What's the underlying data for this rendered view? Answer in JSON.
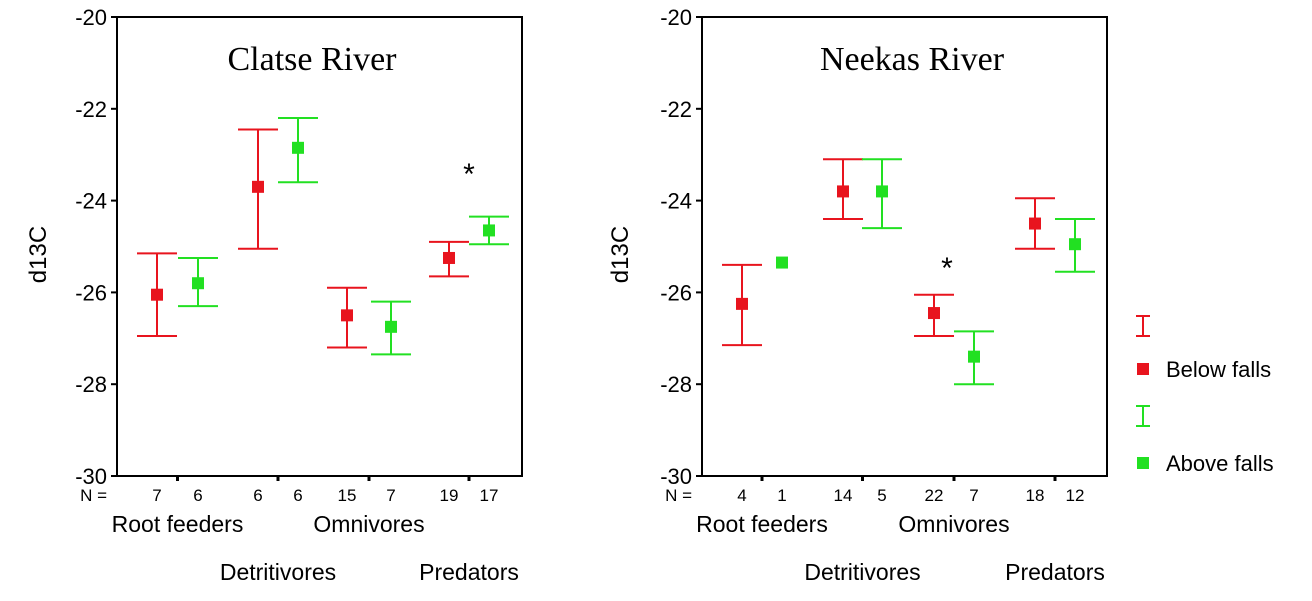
{
  "chart_data": [
    {
      "type": "errorbar",
      "title": "Clatse River",
      "ylabel": "d13C",
      "ylim": [
        -30,
        -20
      ],
      "yticks": [
        "-20",
        "-22",
        "-24",
        "-26",
        "-28",
        "-30"
      ],
      "n_label": "N =",
      "categories": [
        "Root feeders",
        "Detritivores",
        "Omnivores",
        "Predators"
      ],
      "series": [
        {
          "name": "Below falls",
          "color": "#e8141e",
          "mean": [
            -26.05,
            -23.7,
            -26.5,
            -25.25
          ],
          "upper": [
            -25.15,
            -22.45,
            -25.9,
            -24.9
          ],
          "lower": [
            -26.95,
            -25.05,
            -27.2,
            -25.65
          ],
          "n": [
            "7",
            "6",
            "15",
            "19"
          ]
        },
        {
          "name": "Above falls",
          "color": "#22e022",
          "mean": [
            -25.8,
            -22.85,
            -26.75,
            -24.65
          ],
          "upper": [
            -25.25,
            -22.2,
            -26.2,
            -24.35
          ],
          "lower": [
            -26.3,
            -23.6,
            -27.35,
            -24.95
          ],
          "n": [
            "6",
            "6",
            "7",
            "17"
          ]
        }
      ],
      "annotations": [
        {
          "text": "*",
          "category": "Predators"
        }
      ]
    },
    {
      "type": "errorbar",
      "title": "Neekas River",
      "ylabel": "d13C",
      "ylim": [
        -30,
        -20
      ],
      "yticks": [
        "-20",
        "-22",
        "-24",
        "-26",
        "-28",
        "-30"
      ],
      "n_label": "N =",
      "categories": [
        "Root feeders",
        "Detritivores",
        "Omnivores",
        "Predators"
      ],
      "series": [
        {
          "name": "Below falls",
          "color": "#e8141e",
          "mean": [
            -26.25,
            -23.8,
            -26.45,
            -24.5
          ],
          "upper": [
            -25.4,
            -23.1,
            -26.05,
            -23.95
          ],
          "lower": [
            -27.15,
            -24.4,
            -26.95,
            -25.05
          ],
          "n": [
            "4",
            "14",
            "22",
            "18"
          ]
        },
        {
          "name": "Above falls",
          "color": "#22e022",
          "mean": [
            -25.35,
            -23.8,
            -27.4,
            -24.95
          ],
          "upper": [
            null,
            -23.1,
            -26.85,
            -24.4
          ],
          "lower": [
            null,
            -24.6,
            -28.0,
            -25.55
          ],
          "n": [
            "1",
            "5",
            "7",
            "12"
          ]
        }
      ],
      "annotations": [
        {
          "text": "*",
          "category": "Omnivores"
        }
      ]
    }
  ],
  "legend": {
    "placement": "right",
    "items": [
      {
        "label": "",
        "color": "#e8141e",
        "kind": "errorbar"
      },
      {
        "label": "Below falls",
        "color": "#e8141e",
        "kind": "marker"
      },
      {
        "label": "",
        "color": "#22e022",
        "kind": "errorbar"
      },
      {
        "label": "Above falls",
        "color": "#22e022",
        "kind": "marker"
      }
    ]
  }
}
